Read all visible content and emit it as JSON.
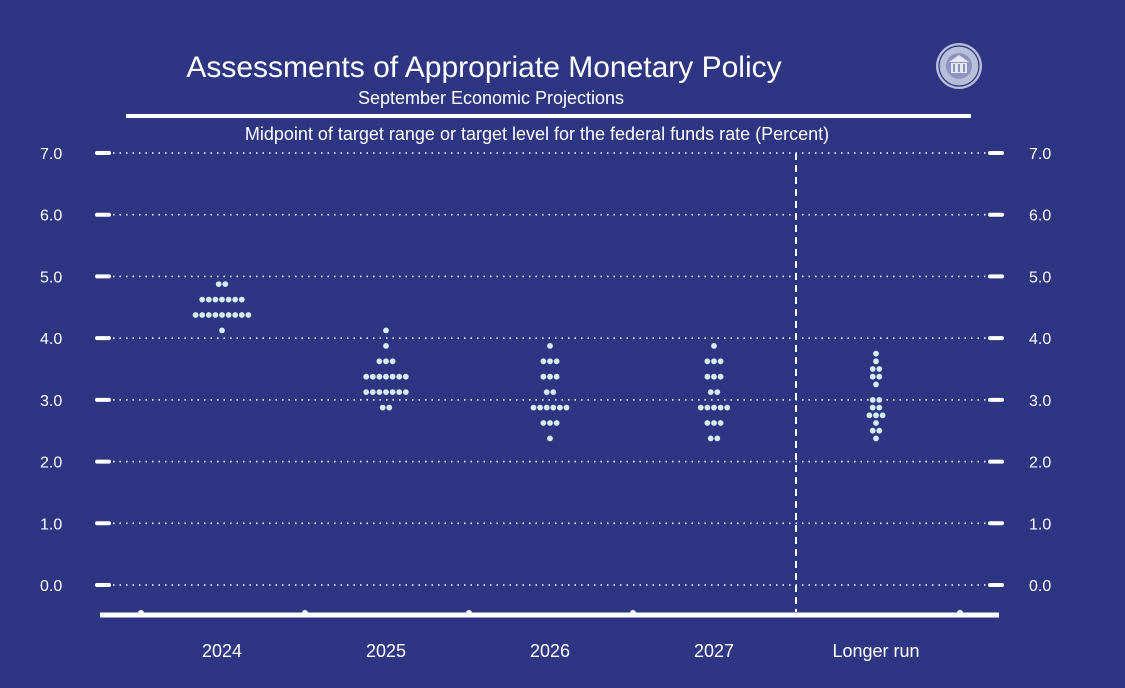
{
  "chart_data": {
    "type": "scatter",
    "title": "Assessments of Appropriate Monetary Policy",
    "subtitle": "September Economic Projections",
    "ylabel": "Midpoint of target range or target level for the federal funds rate (Percent)",
    "ylim": [
      0,
      7
    ],
    "yticks": [
      "0.0",
      "1.0",
      "2.0",
      "3.0",
      "4.0",
      "5.0",
      "6.0",
      "7.0"
    ],
    "grid": true,
    "categories": [
      "2024",
      "2025",
      "2026",
      "2027",
      "Longer run"
    ],
    "dots": [
      [
        {
          "y": 4.875,
          "n": 2
        },
        {
          "y": 4.625,
          "n": 7
        },
        {
          "y": 4.375,
          "n": 9
        },
        {
          "y": 4.125,
          "n": 1
        }
      ],
      [
        {
          "y": 4.125,
          "n": 1
        },
        {
          "y": 3.875,
          "n": 1
        },
        {
          "y": 3.625,
          "n": 3
        },
        {
          "y": 3.375,
          "n": 7
        },
        {
          "y": 3.125,
          "n": 7
        },
        {
          "y": 2.875,
          "n": 2
        }
      ],
      [
        {
          "y": 3.875,
          "n": 1
        },
        {
          "y": 3.625,
          "n": 3
        },
        {
          "y": 3.375,
          "n": 3
        },
        {
          "y": 3.125,
          "n": 2
        },
        {
          "y": 2.875,
          "n": 6
        },
        {
          "y": 2.625,
          "n": 3
        },
        {
          "y": 2.375,
          "n": 1
        }
      ],
      [
        {
          "y": 3.875,
          "n": 1
        },
        {
          "y": 3.625,
          "n": 3
        },
        {
          "y": 3.375,
          "n": 3
        },
        {
          "y": 3.125,
          "n": 2
        },
        {
          "y": 2.875,
          "n": 5
        },
        {
          "y": 2.625,
          "n": 3
        },
        {
          "y": 2.375,
          "n": 2
        }
      ],
      [
        {
          "y": 3.75,
          "n": 1
        },
        {
          "y": 3.625,
          "n": 1
        },
        {
          "y": 3.5,
          "n": 2
        },
        {
          "y": 3.375,
          "n": 2
        },
        {
          "y": 3.25,
          "n": 1
        },
        {
          "y": 3.0,
          "n": 2
        },
        {
          "y": 2.875,
          "n": 2
        },
        {
          "y": 2.75,
          "n": 3
        },
        {
          "y": 2.625,
          "n": 1
        },
        {
          "y": 2.5,
          "n": 2
        },
        {
          "y": 2.375,
          "n": 1
        }
      ]
    ]
  },
  "colors": {
    "background": "#2e3582",
    "dot": "#d4eef0",
    "text": "#ffffff"
  },
  "icons": {
    "seal": "federal-reserve-seal-icon"
  }
}
